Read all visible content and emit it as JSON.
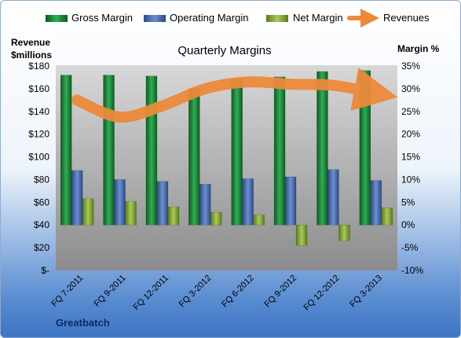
{
  "chart_data": {
    "type": "bar",
    "title": "Quarterly Margins",
    "ylabel_left": "Revenue\n$millions",
    "ylabel_right": "Margin %",
    "categories": [
      "FQ 7-2011",
      "FQ 9-2011",
      "FQ 12-2011",
      "FQ 3-2012",
      "FQ 6-2012",
      "FQ 9-2012",
      "FQ 12-2012",
      "FQ 3-2013"
    ],
    "left_axis": {
      "min": 0,
      "max": 180,
      "step": 20,
      "tick_labels": [
        "$-",
        "$20",
        "$40",
        "$60",
        "$80",
        "$100",
        "$120",
        "$140",
        "$160",
        "$180"
      ]
    },
    "right_axis": {
      "min": -10,
      "max": 35,
      "step": 5,
      "tick_labels": [
        "-10%",
        "-5%",
        "0%",
        "5%",
        "10%",
        "15%",
        "20%",
        "25%",
        "30%",
        "35%"
      ]
    },
    "series": [
      {
        "name": "Gross Margin",
        "axis": "right",
        "type": "bar",
        "color": "#1f8a3a",
        "values": [
          33.0,
          33.0,
          32.8,
          30.0,
          32.2,
          32.6,
          33.8,
          34.0
        ]
      },
      {
        "name": "Operating Margin",
        "axis": "right",
        "type": "bar",
        "color": "#4f72b5",
        "values": [
          12.0,
          10.0,
          9.6,
          9.0,
          10.2,
          10.6,
          12.2,
          9.8
        ]
      },
      {
        "name": "Net Margin",
        "axis": "right",
        "type": "bar",
        "color": "#8cae3a",
        "values": [
          5.8,
          5.2,
          4.0,
          2.8,
          2.2,
          -4.5,
          -3.5,
          3.8
        ]
      },
      {
        "name": "Revenues",
        "axis": "left",
        "type": "line",
        "color": "#ed8a3a",
        "values": [
          150,
          135,
          145,
          160,
          166,
          164,
          163,
          156
        ]
      }
    ],
    "legend_position": "top",
    "grid": false
  },
  "footer": {
    "company": "Greatbatch"
  }
}
